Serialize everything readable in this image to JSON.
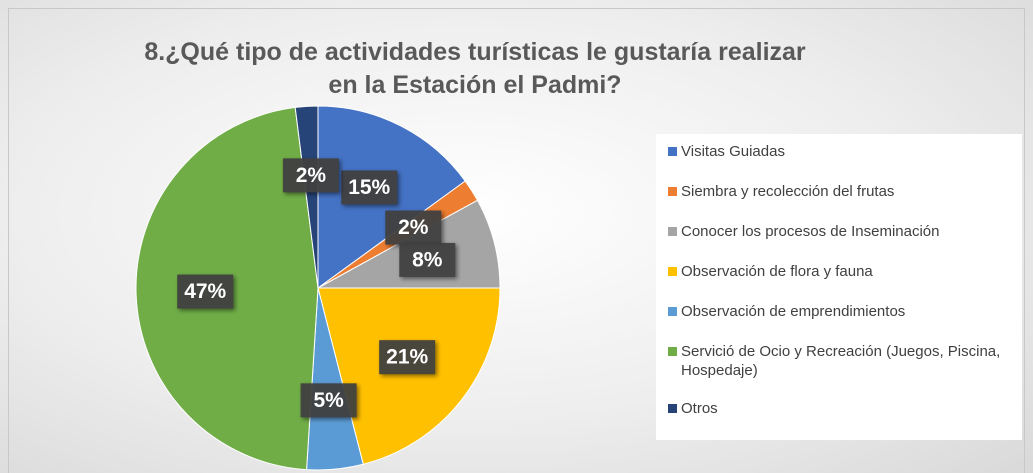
{
  "chart_data": {
    "type": "pie",
    "title": "8.¿Qué tipo de actividades turísticas le gustaría realizar en la Estación el Padmi?",
    "categories": [
      "Visitas Guiadas",
      "Siembra y recolección del frutas",
      "Conocer los procesos de Inseminación",
      "Observación de flora y fauna",
      "Observación de emprendimientos",
      "Servició de Ocio y Recreación (Juegos, Piscina, Hospedaje)",
      "Otros"
    ],
    "values": [
      15,
      2,
      8,
      21,
      5,
      47,
      2
    ],
    "value_labels": [
      "15%",
      "2%",
      "8%",
      "21%",
      "5%",
      "47%",
      "2%"
    ],
    "colors": [
      "#4472c4",
      "#ed7d31",
      "#a5a5a5",
      "#ffc000",
      "#5b9bd5",
      "#70ad47",
      "#264478"
    ],
    "legend": "right"
  }
}
